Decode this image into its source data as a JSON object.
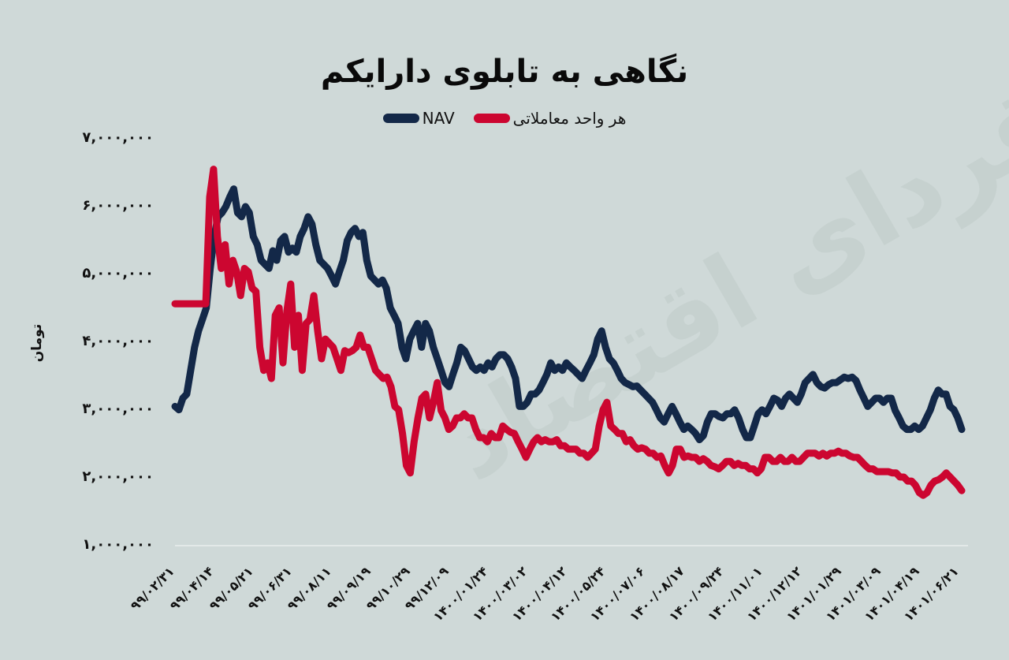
{
  "title": "نگاهی به تابلوی دارایکم",
  "legend": [
    {
      "label": "NAV",
      "color": "#132848"
    },
    {
      "label": "هر واحد معاملاتی",
      "color": "#cc0630"
    }
  ],
  "watermark": "فردای اقتصاد",
  "y_axis": {
    "label": "تومان",
    "ticks": [
      "۷,۰۰۰,۰۰۰",
      "۶,۰۰۰,۰۰۰",
      "۵,۰۰۰,۰۰۰",
      "۴,۰۰۰,۰۰۰",
      "۳,۰۰۰,۰۰۰",
      "۲,۰۰۰,۰۰۰",
      "۱,۰۰۰,۰۰۰"
    ]
  },
  "x_axis": {
    "ticks": [
      "۹۹/۰۲/۳۱",
      "۹۹/۰۴/۱۴",
      "۹۹/۰۵/۲۱",
      "۹۹/۰۶/۳۱",
      "۹۹/۰۸/۱۱",
      "۹۹/۰۹/۱۹",
      "۹۹/۱۰/۲۹",
      "۹۹/۱۲/۰۹",
      "۱۴۰۰/۰۱/۲۴",
      "۱۴۰۰/۰۳/۰۲",
      "۱۴۰۰/۰۴/۱۲",
      "۱۴۰۰/۰۵/۲۴",
      "۱۴۰۰/۰۷/۰۶",
      "۱۴۰۰/۰۸/۱۷",
      "۱۴۰۰/۰۹/۲۴",
      "۱۴۰۰/۱۱/۰۱",
      "۱۴۰۰/۱۲/۱۲",
      "۱۴۰۱/۰۱/۲۹",
      "۱۴۰۱/۰۳/۰۹",
      "۱۴۰۱/۰۴/۱۹",
      "۱۴۰۱/۰۶/۲۱"
    ]
  },
  "chart_data": {
    "type": "line",
    "title": "نگاهی به تابلوی دارایکم",
    "xlabel": "",
    "ylabel": "تومان",
    "ylim": [
      1000000,
      7000000
    ],
    "grid": false,
    "legend_position": "top",
    "categories": [
      "99/02/31",
      "99/04/14",
      "99/05/21",
      "99/06/31",
      "99/08/11",
      "99/09/19",
      "99/10/29",
      "99/12/09",
      "1400/01/24",
      "1400/03/02",
      "1400/04/12",
      "1400/05/24",
      "1400/07/06",
      "1400/08/17",
      "1400/09/24",
      "1400/11/01",
      "1400/12/12",
      "1401/01/29",
      "1401/03/09",
      "1401/04/19",
      "1401/06/21"
    ],
    "value_unit": "million toman",
    "series": [
      {
        "name": "NAV",
        "color": "#132848",
        "values": [
          3.05,
          3.0,
          3.17,
          3.23,
          3.58,
          3.92,
          4.16,
          4.33,
          4.5,
          5.08,
          5.55,
          5.84,
          5.9,
          5.99,
          6.13,
          6.25,
          5.9,
          5.84,
          5.99,
          5.9,
          5.55,
          5.43,
          5.2,
          5.14,
          5.08,
          5.34,
          5.2,
          5.49,
          5.55,
          5.32,
          5.38,
          5.32,
          5.55,
          5.67,
          5.84,
          5.73,
          5.43,
          5.2,
          5.14,
          5.08,
          4.97,
          4.85,
          5.03,
          5.2,
          5.49,
          5.61,
          5.67,
          5.55,
          5.61,
          5.2,
          4.97,
          4.91,
          4.85,
          4.91,
          4.79,
          4.5,
          4.39,
          4.27,
          3.92,
          3.75,
          4.04,
          4.16,
          4.27,
          3.92,
          4.27,
          4.16,
          3.92,
          3.75,
          3.58,
          3.4,
          3.34,
          3.52,
          3.69,
          3.92,
          3.87,
          3.75,
          3.63,
          3.58,
          3.63,
          3.58,
          3.69,
          3.63,
          3.75,
          3.81,
          3.81,
          3.75,
          3.63,
          3.46,
          3.05,
          3.05,
          3.11,
          3.23,
          3.23,
          3.29,
          3.4,
          3.52,
          3.69,
          3.58,
          3.63,
          3.58,
          3.69,
          3.63,
          3.58,
          3.52,
          3.46,
          3.58,
          3.69,
          3.81,
          4.04,
          4.16,
          3.92,
          3.75,
          3.69,
          3.58,
          3.46,
          3.4,
          3.37,
          3.34,
          3.35,
          3.29,
          3.23,
          3.17,
          3.11,
          3.0,
          2.88,
          2.82,
          2.94,
          3.05,
          2.94,
          2.82,
          2.71,
          2.76,
          2.71,
          2.65,
          2.56,
          2.62,
          2.82,
          2.94,
          2.94,
          2.9,
          2.88,
          2.94,
          2.94,
          3.0,
          2.88,
          2.71,
          2.59,
          2.59,
          2.76,
          2.94,
          3.0,
          2.94,
          3.05,
          3.17,
          3.14,
          3.05,
          3.17,
          3.23,
          3.17,
          3.11,
          3.23,
          3.4,
          3.46,
          3.52,
          3.4,
          3.34,
          3.32,
          3.37,
          3.4,
          3.4,
          3.44,
          3.48,
          3.46,
          3.48,
          3.43,
          3.29,
          3.17,
          3.05,
          3.11,
          3.17,
          3.17,
          3.11,
          3.17,
          3.17,
          2.99,
          2.88,
          2.76,
          2.71,
          2.71,
          2.76,
          2.71,
          2.76,
          2.88,
          3.0,
          3.17,
          3.29,
          3.23,
          3.23,
          3.05,
          3.0,
          2.88,
          2.71
        ]
      },
      {
        "name": "هر واحد معاملاتی",
        "color": "#cc0630",
        "values": [
          4.56,
          4.56,
          4.56,
          4.56,
          4.56,
          4.56,
          4.56,
          4.56,
          4.56,
          6.13,
          6.54,
          5.55,
          5.08,
          5.43,
          4.85,
          5.2,
          5.03,
          4.68,
          5.08,
          5.03,
          4.79,
          4.74,
          3.92,
          3.58,
          3.69,
          3.46,
          4.39,
          4.5,
          3.69,
          4.45,
          4.85,
          3.92,
          4.39,
          3.58,
          4.27,
          4.33,
          4.68,
          4.16,
          3.75,
          4.04,
          3.98,
          3.92,
          3.75,
          3.58,
          3.87,
          3.84,
          3.87,
          3.92,
          4.1,
          3.92,
          3.92,
          3.75,
          3.58,
          3.52,
          3.46,
          3.48,
          3.34,
          3.05,
          3.0,
          2.65,
          2.18,
          2.07,
          2.53,
          2.88,
          3.17,
          3.23,
          2.88,
          3.11,
          3.4,
          2.99,
          2.88,
          2.71,
          2.76,
          2.88,
          2.88,
          2.94,
          2.88,
          2.88,
          2.71,
          2.59,
          2.59,
          2.53,
          2.65,
          2.59,
          2.59,
          2.76,
          2.71,
          2.67,
          2.65,
          2.53,
          2.42,
          2.3,
          2.42,
          2.53,
          2.59,
          2.53,
          2.56,
          2.53,
          2.53,
          2.56,
          2.47,
          2.47,
          2.42,
          2.42,
          2.42,
          2.36,
          2.36,
          2.3,
          2.36,
          2.42,
          2.76,
          3.0,
          3.11,
          2.76,
          2.71,
          2.65,
          2.65,
          2.53,
          2.56,
          2.47,
          2.42,
          2.44,
          2.42,
          2.36,
          2.36,
          2.3,
          2.32,
          2.18,
          2.07,
          2.18,
          2.42,
          2.42,
          2.3,
          2.32,
          2.3,
          2.3,
          2.24,
          2.28,
          2.24,
          2.18,
          2.16,
          2.13,
          2.18,
          2.24,
          2.24,
          2.18,
          2.21,
          2.18,
          2.18,
          2.13,
          2.13,
          2.07,
          2.13,
          2.3,
          2.3,
          2.24,
          2.24,
          2.3,
          2.24,
          2.24,
          2.3,
          2.24,
          2.24,
          2.3,
          2.36,
          2.36,
          2.36,
          2.32,
          2.36,
          2.32,
          2.36,
          2.36,
          2.39,
          2.36,
          2.36,
          2.32,
          2.3,
          2.3,
          2.24,
          2.18,
          2.13,
          2.13,
          2.09,
          2.09,
          2.09,
          2.09,
          2.07,
          2.07,
          2.01,
          2.01,
          1.95,
          1.95,
          1.89,
          1.78,
          1.74,
          1.78,
          1.89,
          1.95,
          1.97,
          2.01,
          2.07,
          2.01,
          1.95,
          1.89,
          1.81
        ]
      }
    ]
  }
}
